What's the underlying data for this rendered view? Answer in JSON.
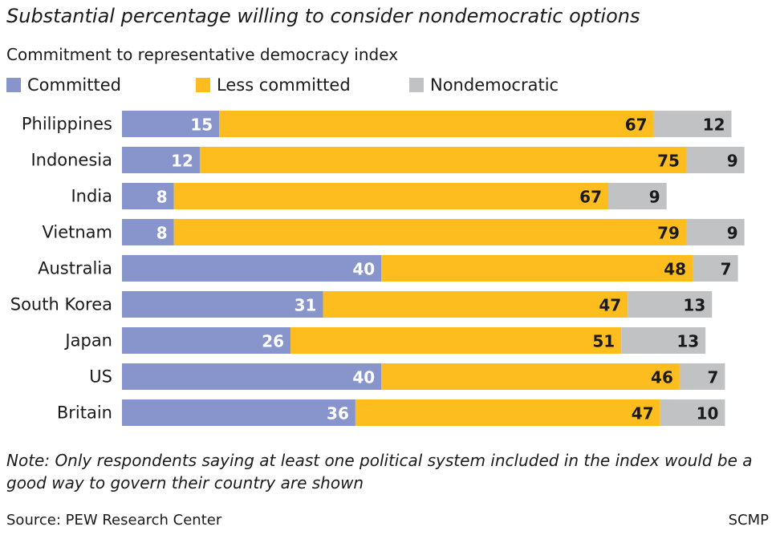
{
  "chart_data": {
    "type": "bar",
    "orientation": "horizontal",
    "stacked": true,
    "title": "Substantial percentage willing to consider nondemocratic options",
    "subtitle": "Commitment to representative democracy index",
    "categories": [
      "Philippines",
      "Indonesia",
      "India",
      "Vietnam",
      "Australia",
      "South Korea",
      "Japan",
      "US",
      "Britain"
    ],
    "series": [
      {
        "name": "Committed",
        "color": "#8795cc",
        "values": [
          15,
          12,
          8,
          8,
          40,
          31,
          26,
          40,
          36
        ]
      },
      {
        "name": "Less committed",
        "color": "#fdbd1f",
        "values": [
          67,
          75,
          67,
          79,
          48,
          47,
          51,
          46,
          47
        ]
      },
      {
        "name": "Nondemocratic",
        "color": "#c1c2c4",
        "values": [
          12,
          9,
          9,
          9,
          7,
          13,
          13,
          7,
          10
        ]
      }
    ],
    "xlim": [
      0,
      100
    ],
    "grid": false,
    "legend_position": "top-left",
    "data_labels": true
  },
  "note": "Note: Only respondents saying at least one political system included in the index would be a good way to govern their country are shown",
  "source": "Source: PEW Research Center",
  "credit": "SCMP"
}
